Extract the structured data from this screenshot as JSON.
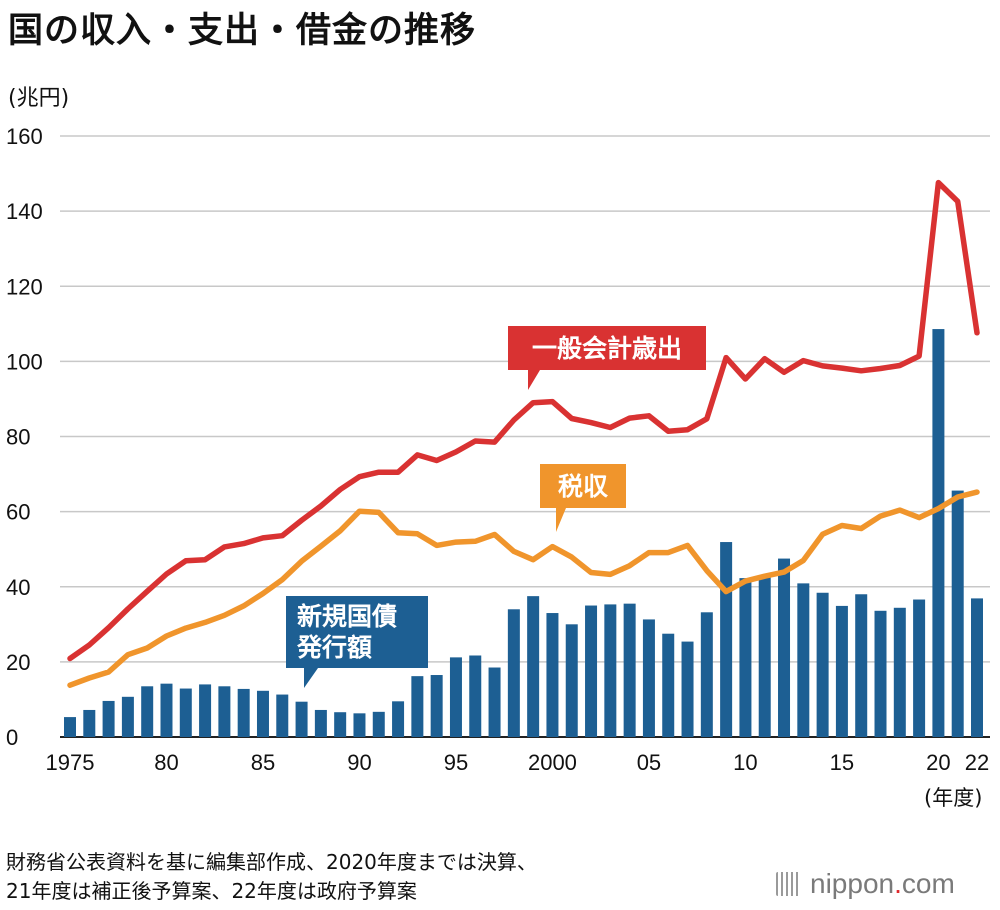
{
  "header": {
    "title": "国の収入・支出・借金の推移",
    "unit": "(兆円)",
    "year_unit": "(年度)"
  },
  "footnote": {
    "line1": "財務省公表資料を基に編集部作成、2020年度までは決算、",
    "line2": "21年度は補正後予算案、22年度は政府予算案"
  },
  "logo": {
    "text": "nippon",
    "dot": ".",
    "suffix": "com"
  },
  "colors": {
    "expenditure": "#d93232",
    "tax": "#f0952c",
    "bonds": "#1d5f93",
    "grid": "#c8c8c8"
  },
  "chart_data": {
    "type": "bar+line",
    "title": "国の収入・支出・借金の推移",
    "ylabel": "(兆円)",
    "xlabel": "(年度)",
    "ylim": [
      0,
      160
    ],
    "yticks": [
      0,
      20,
      40,
      60,
      80,
      100,
      120,
      140,
      160
    ],
    "xlim": [
      1975,
      2022
    ],
    "xticks": [
      {
        "year": 1975,
        "label": "1975"
      },
      {
        "year": 1980,
        "label": "80"
      },
      {
        "year": 1985,
        "label": "85"
      },
      {
        "year": 1990,
        "label": "90"
      },
      {
        "year": 1995,
        "label": "95"
      },
      {
        "year": 2000,
        "label": "2000"
      },
      {
        "year": 2005,
        "label": "05"
      },
      {
        "year": 2010,
        "label": "10"
      },
      {
        "year": 2015,
        "label": "15"
      },
      {
        "year": 2020,
        "label": "20"
      },
      {
        "year": 2022,
        "label": "22"
      }
    ],
    "years": [
      1975,
      1976,
      1977,
      1978,
      1979,
      1980,
      1981,
      1982,
      1983,
      1984,
      1985,
      1986,
      1987,
      1988,
      1989,
      1990,
      1991,
      1992,
      1993,
      1994,
      1995,
      1996,
      1997,
      1998,
      1999,
      2000,
      2001,
      2002,
      2003,
      2004,
      2005,
      2006,
      2007,
      2008,
      2009,
      2010,
      2011,
      2012,
      2013,
      2014,
      2015,
      2016,
      2017,
      2018,
      2019,
      2020,
      2021,
      2022
    ],
    "series": [
      {
        "name": "一般会計歳出",
        "type": "line",
        "values": [
          20.9,
          24.5,
          29.1,
          34.1,
          38.8,
          43.4,
          46.9,
          47.2,
          50.6,
          51.5,
          53.0,
          53.6,
          57.7,
          61.5,
          65.9,
          69.3,
          70.5,
          70.5,
          75.1,
          73.6,
          75.9,
          78.8,
          78.5,
          84.4,
          89.0,
          89.3,
          84.8,
          83.7,
          82.4,
          84.9,
          85.5,
          81.4,
          81.8,
          84.7,
          101.0,
          95.3,
          100.7,
          97.1,
          100.2,
          98.8,
          98.2,
          97.5,
          98.1,
          98.9,
          101.4,
          147.6,
          142.6,
          107.6
        ]
      },
      {
        "name": "税収",
        "type": "line",
        "values": [
          13.8,
          15.7,
          17.3,
          21.9,
          23.7,
          26.9,
          29.0,
          30.5,
          32.4,
          34.9,
          38.2,
          41.9,
          46.8,
          50.8,
          54.9,
          60.1,
          59.8,
          54.4,
          54.1,
          51.0,
          51.9,
          52.1,
          53.9,
          49.4,
          47.2,
          50.7,
          47.9,
          43.8,
          43.3,
          45.6,
          49.1,
          49.1,
          51.0,
          44.3,
          38.7,
          41.5,
          42.8,
          43.9,
          47.0,
          54.0,
          56.3,
          55.5,
          58.8,
          60.4,
          58.4,
          60.8,
          63.9,
          65.2
        ]
      },
      {
        "name": "新規国債発行額",
        "type": "bar",
        "values": [
          5.3,
          7.2,
          9.6,
          10.7,
          13.5,
          14.2,
          12.9,
          14.0,
          13.5,
          12.8,
          12.3,
          11.3,
          9.4,
          7.2,
          6.6,
          6.3,
          6.7,
          9.5,
          16.2,
          16.5,
          21.2,
          21.7,
          18.5,
          34.0,
          37.5,
          33.0,
          30.0,
          35.0,
          35.3,
          35.5,
          31.3,
          27.5,
          25.4,
          33.2,
          51.9,
          42.3,
          42.8,
          47.5,
          40.9,
          38.4,
          34.9,
          38.0,
          33.6,
          34.4,
          36.6,
          108.6,
          65.6,
          36.9
        ]
      }
    ],
    "annotations": [
      {
        "target": "一般会計歳出",
        "text": "一般会計歳出"
      },
      {
        "target": "税収",
        "text": "税収"
      },
      {
        "target": "新規国債発行額",
        "line1": "新規国債",
        "line2": "発行額"
      }
    ]
  }
}
